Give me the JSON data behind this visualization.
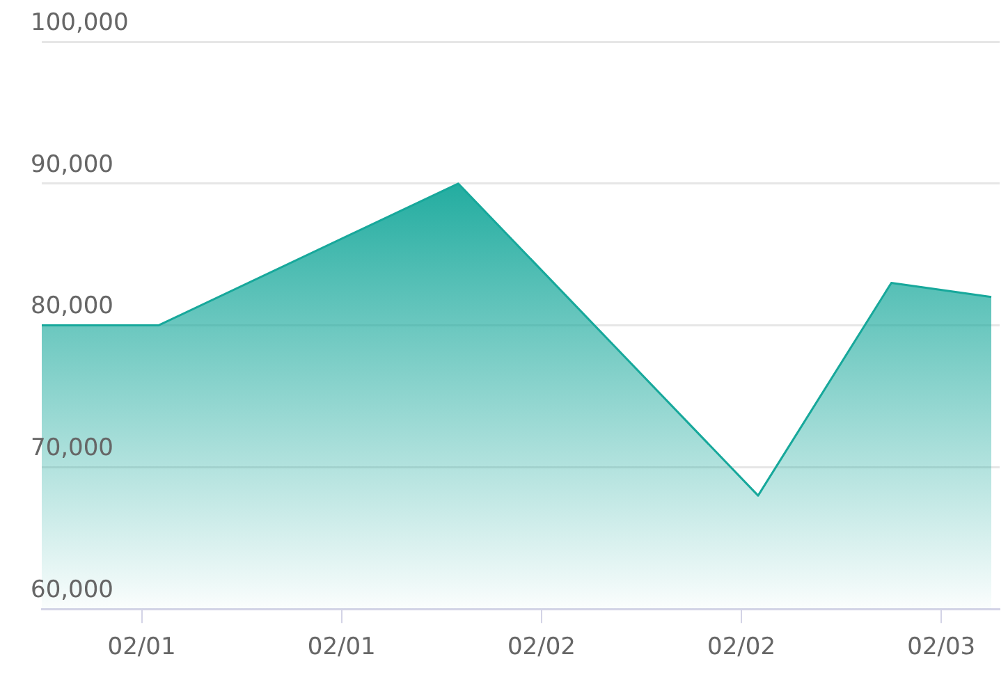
{
  "chart_data": {
    "type": "area",
    "x": [
      "--01-31T18:00",
      "--02-01T01:00",
      "--02-01T19:00",
      "--02-02T13:00",
      "--02-02T21:00",
      "--02-03T03:00"
    ],
    "series": [
      {
        "color": "#17a89b",
        "values": [
          80000,
          80000,
          90000,
          68000,
          83000,
          82000
        ]
      }
    ],
    "xlim": [
      "--01-31T18:00",
      "--02-03T03:30"
    ],
    "xticks": [
      {
        "value": "--02-01T00:00",
        "label": "02/01"
      },
      {
        "value": "--02-01T12:00",
        "label": "02/01"
      },
      {
        "value": "--02-02T00:00",
        "label": "02/02"
      },
      {
        "value": "--02-02T12:00",
        "label": "02/02"
      },
      {
        "value": "--02-03T00:00",
        "label": "02/03"
      }
    ],
    "ylim": [
      60000,
      100000
    ],
    "yticks": [
      {
        "value": 60000,
        "label": "60,000"
      },
      {
        "value": 70000,
        "label": "70,000"
      },
      {
        "value": 80000,
        "label": "80,000"
      },
      {
        "value": 90000,
        "label": "90,000"
      },
      {
        "value": 100000,
        "label": "100,000"
      }
    ],
    "grid": "y",
    "legend": false,
    "marker": "none"
  }
}
